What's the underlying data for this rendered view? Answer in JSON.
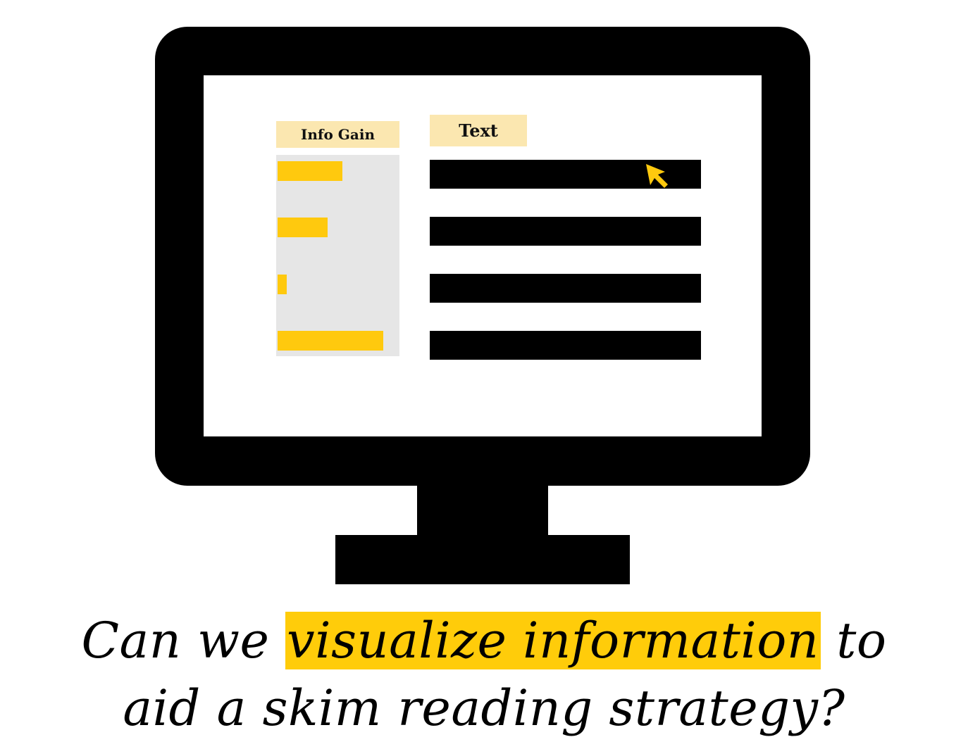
{
  "panels": {
    "info_gain_label": "Info Gain",
    "text_label": "Text"
  },
  "info_gain_bars": [
    {
      "value": 0.55
    },
    {
      "value": 0.42
    },
    {
      "value": 0.08
    },
    {
      "value": 0.89
    }
  ],
  "text_lines_count": 4,
  "caption": {
    "part1": "Can we ",
    "highlight": "visualize information",
    "part2": " to",
    "line2": "aid a skim reading strategy?"
  },
  "colors": {
    "accent": "#ffc90e",
    "header_fill": "#fbe7b0",
    "panel_fill": "#e6e6e6",
    "frame": "#000000"
  },
  "icons": {
    "cursor": "mouse-pointer-icon"
  }
}
